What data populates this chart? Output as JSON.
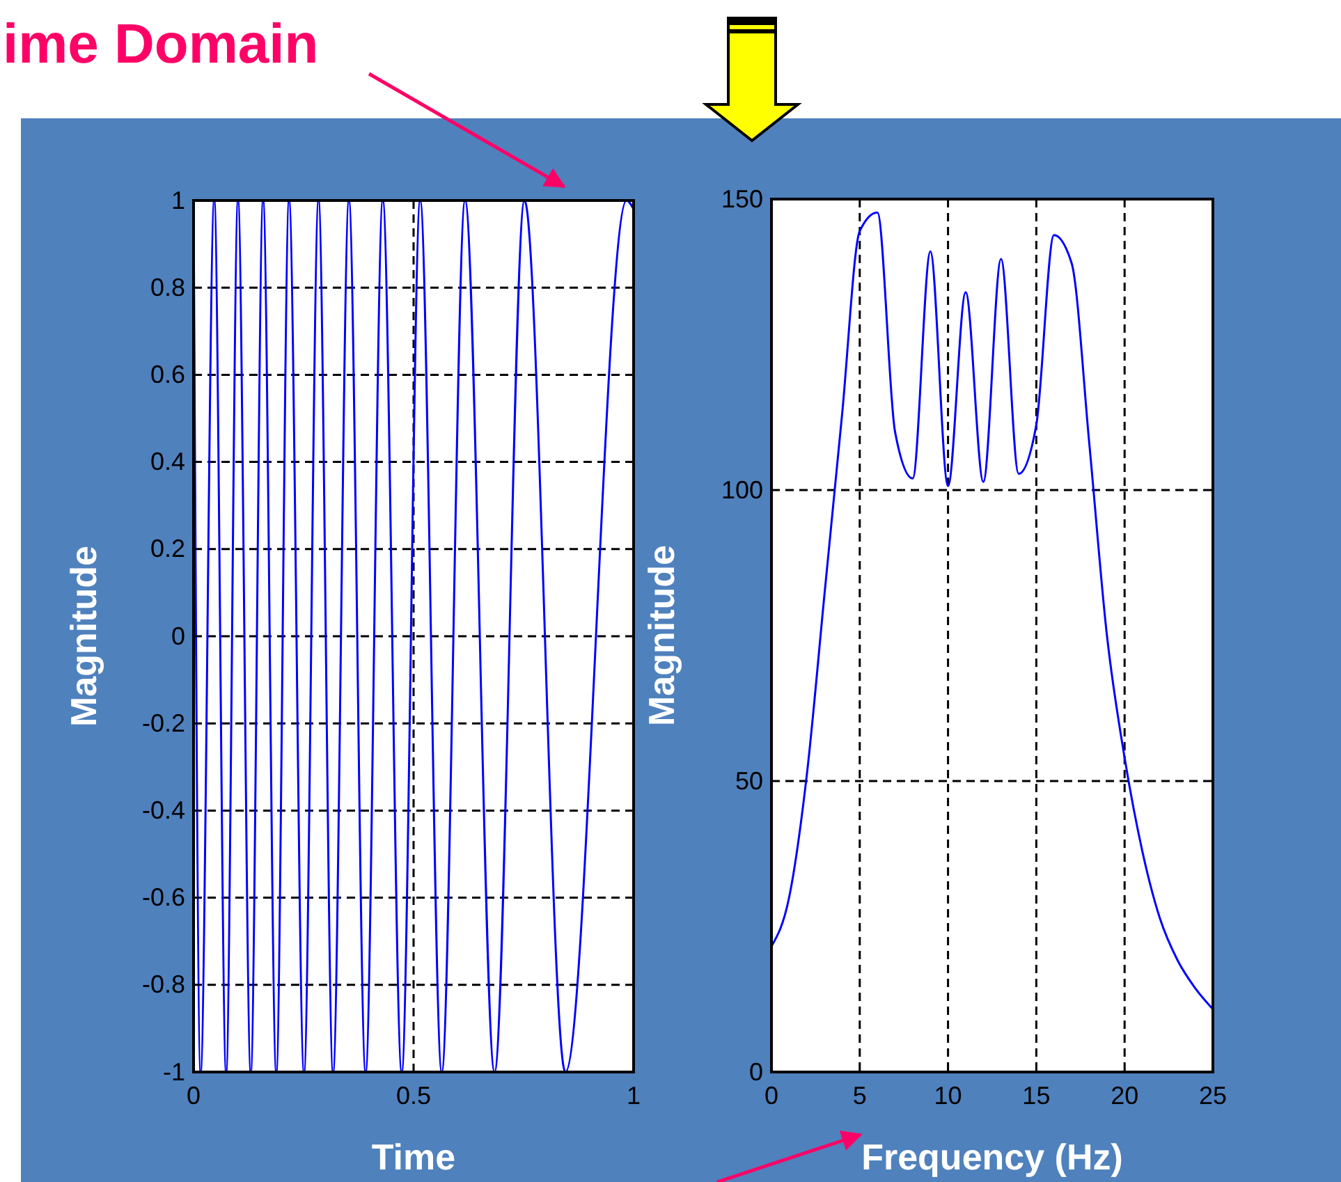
{
  "chart_data": [
    {
      "type": "line",
      "xlabel": "Time",
      "ylabel": "Magnitude",
      "annotations": [
        "ime Domain"
      ],
      "xlim": [
        0,
        1
      ],
      "ylim": [
        -1,
        1
      ],
      "xticks": [
        0,
        0.5,
        1
      ],
      "yticks": [
        -1,
        {
          "value": -0.8,
          "label": "-0.8"
        },
        {
          "value": -0.6,
          "label": "-0.6"
        },
        {
          "value": -0.4,
          "label": "-0.4"
        },
        {
          "value": -0.2,
          "label": "-0.2"
        },
        0,
        0.2,
        0.4,
        0.6,
        0.8,
        1
      ],
      "grid": true,
      "series": [
        {
          "color": "#0000ff",
          "x": [
            0,
            0.016,
            0.047,
            0.074,
            0.101,
            0.13,
            0.158,
            0.188,
            0.217,
            0.251,
            0.284,
            0.317,
            0.353,
            0.391,
            0.43,
            0.473,
            0.515,
            0.564,
            0.617,
            0.684,
            0.752,
            0.845,
            0.984,
            1
          ],
          "values": [
            1,
            -1,
            1,
            -1,
            1,
            -1,
            1,
            -1,
            1,
            -1,
            1,
            -1,
            1,
            -1,
            1,
            -1,
            1,
            -1,
            1,
            -1,
            1,
            -1,
            1,
            0.98
          ]
        }
      ]
    },
    {
      "type": "line",
      "xlabel": "Frequency (Hz)",
      "ylabel": "Magnitude",
      "xlim": [
        0,
        25
      ],
      "ylim": [
        0,
        150
      ],
      "xticks": [
        0,
        5,
        10,
        15,
        20,
        25
      ],
      "yticks": [
        0,
        50,
        100,
        150
      ],
      "grid": true,
      "series": [
        {
          "color": "#0000ff",
          "x": [
            0,
            1,
            2,
            3,
            4,
            5,
            6,
            7,
            8,
            9,
            10,
            11,
            12,
            13,
            14,
            15,
            16,
            17,
            18,
            19,
            20,
            21,
            22,
            23,
            24,
            25
          ],
          "values": [
            21.6,
            30,
            51,
            82,
            113,
            144.5,
            147.7,
            110,
            102,
            141,
            100.7,
            134,
            101.4,
            139.7,
            102.8,
            111.2,
            143.8,
            139,
            108,
            75,
            54,
            38,
            26.4,
            19.2,
            14.4,
            10.8
          ]
        }
      ]
    }
  ]
}
